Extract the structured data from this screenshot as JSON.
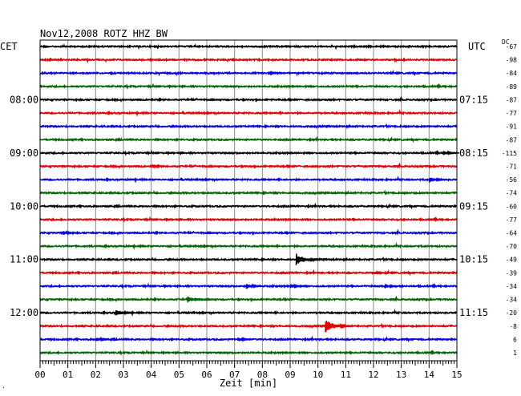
{
  "title": "Nov12,2008   ROTZ HHZ BW",
  "left_tz": "CET",
  "right_tz": "UTC",
  "dc_label": "DC",
  "chart_data": {
    "type": "line",
    "title": "Nov12,2008   ROTZ HHZ BW",
    "xlabel": "Zeit [min]",
    "xlim": [
      0,
      15
    ],
    "x_ticks": [
      "00",
      "01",
      "02",
      "03",
      "04",
      "05",
      "06",
      "07",
      "08",
      "09",
      "10",
      "11",
      "12",
      "13",
      "14",
      "15"
    ],
    "left_labels": [
      {
        "trace": 4,
        "text": "08:00"
      },
      {
        "trace": 8,
        "text": "09:00"
      },
      {
        "trace": 12,
        "text": "10:00"
      },
      {
        "trace": 16,
        "text": "11:00"
      },
      {
        "trace": 20,
        "text": "12:00"
      }
    ],
    "right_labels": [
      {
        "trace": 4,
        "text": "07:15"
      },
      {
        "trace": 8,
        "text": "08:15"
      },
      {
        "trace": 12,
        "text": "09:15"
      },
      {
        "trace": 16,
        "text": "10:15"
      },
      {
        "trace": 20,
        "text": "11:15"
      }
    ],
    "dc_offsets": [
      -67,
      -98,
      -84,
      -89,
      -87,
      -77,
      -91,
      -87,
      -115,
      -71,
      -56,
      -74,
      -60,
      -77,
      -64,
      -70,
      -49,
      -39,
      -34,
      -34,
      -20,
      -8,
      6,
      1
    ],
    "trace_colors": [
      "#000000",
      "#e00000",
      "#0000e0",
      "#006400"
    ],
    "grid": true,
    "events": [
      {
        "trace": 16,
        "minute": 9.3,
        "amplitude": 8,
        "label": ""
      },
      {
        "trace": 21,
        "minute": 10.35,
        "amplitude": 9,
        "label": ""
      },
      {
        "trace": 20,
        "minute": 2.8,
        "amplitude": 5,
        "label": ""
      },
      {
        "trace": 19,
        "minute": 5.4,
        "amplitude": 4,
        "label": ""
      },
      {
        "trace": 18,
        "minute": 7.5,
        "amplitude": 4,
        "label": ""
      },
      {
        "trace": 18,
        "minute": 9.1,
        "amplitude": 3,
        "label": ""
      },
      {
        "trace": 18,
        "minute": 12.5,
        "amplitude": 3,
        "label": ""
      },
      {
        "trace": 17,
        "minute": 12.1,
        "amplitude": 2,
        "label": ""
      },
      {
        "trace": 10,
        "minute": 14.1,
        "amplitude": 4,
        "label": ""
      },
      {
        "trace": 14,
        "minute": 0.9,
        "amplitude": 3,
        "label": ""
      },
      {
        "trace": 2,
        "minute": 8.3,
        "amplitude": 2,
        "label": ""
      },
      {
        "trace": 22,
        "minute": 2.1,
        "amplitude": 3,
        "label": ""
      },
      {
        "trace": 22,
        "minute": 7.2,
        "amplitude": 3,
        "label": ""
      },
      {
        "trace": 9,
        "minute": 4.1,
        "amplitude": 2,
        "label": ""
      },
      {
        "trace": 8,
        "minute": 14.6,
        "amplitude": 3,
        "label": ""
      }
    ]
  },
  "corner_mark": "."
}
